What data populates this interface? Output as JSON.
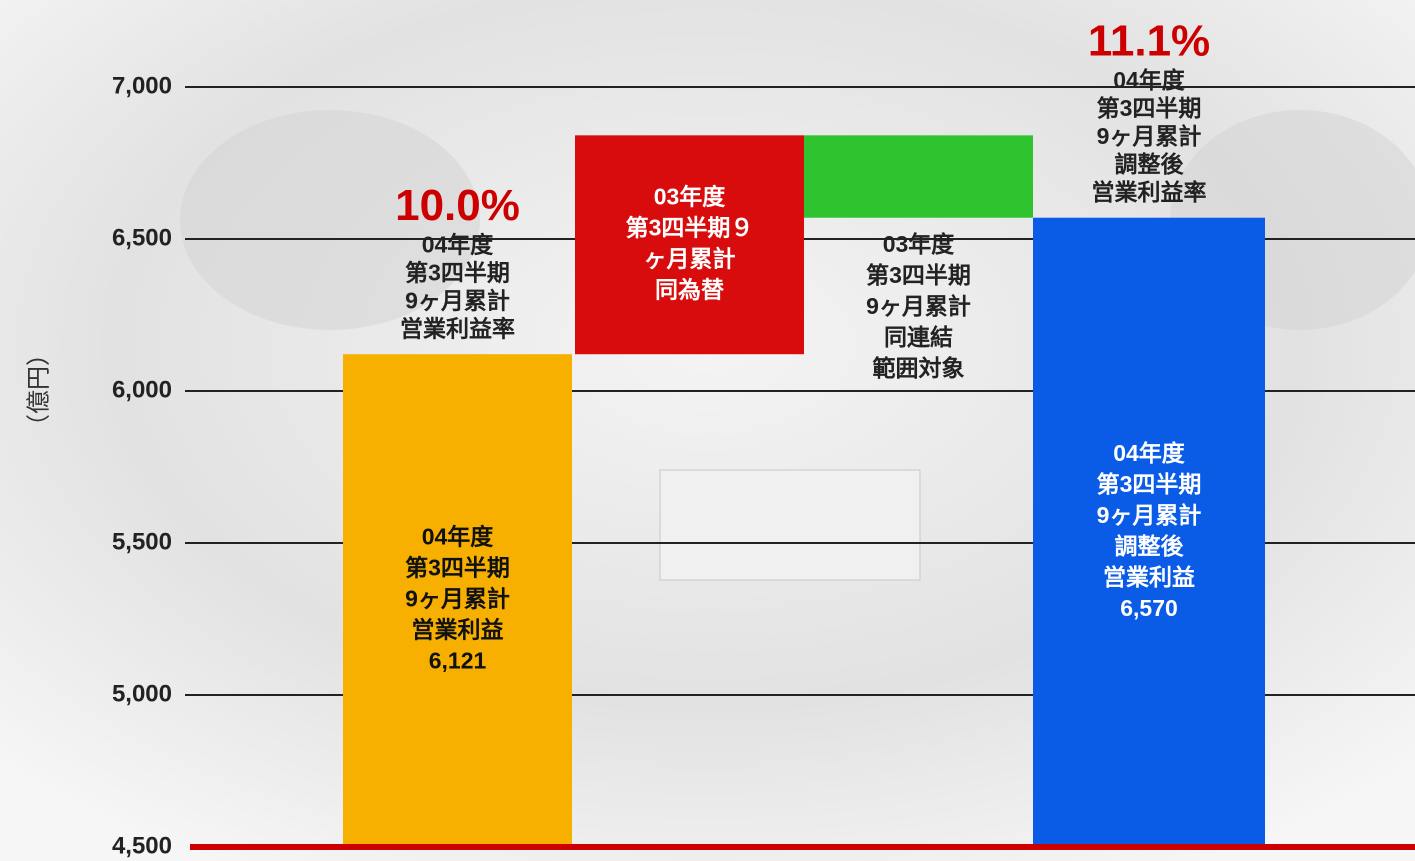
{
  "chart_data": {
    "type": "waterfall",
    "y_label": "（億円）",
    "ylim": [
      4500,
      7000
    ],
    "yticks": [
      {
        "value": 4500,
        "label": "4,500"
      },
      {
        "value": 5000,
        "label": "5,000"
      },
      {
        "value": 5500,
        "label": "5,500"
      },
      {
        "value": 6000,
        "label": "6,000"
      },
      {
        "value": 6500,
        "label": "6,500"
      },
      {
        "value": 7000,
        "label": "7,000"
      }
    ],
    "grid": true,
    "baseline_color": "#cc0000",
    "categories": [
      [
        "04年度",
        "第3四半期",
        "9ヶ月累計",
        "営業利益"
      ],
      [
        "03年度",
        "第3四半期９",
        "ヶ月累計",
        "同為替"
      ],
      [
        "03年度",
        "第3四半期",
        "9ヶ月累計",
        "同連結",
        "範囲対象"
      ],
      [
        "04年度",
        "第3四半期",
        "9ヶ月累計",
        "調整後",
        "営業利益"
      ]
    ],
    "values": [
      6121,
      720,
      -271,
      6570
    ],
    "value_labels": [
      "6,121",
      null,
      null,
      "6,570"
    ],
    "totals": [
      true,
      false,
      false,
      true
    ],
    "colors": [
      "#f7b000",
      "#d80c0c",
      "#2fc42f",
      "#0a5ce6"
    ],
    "annotations": [
      {
        "label": "10.0%",
        "lines": [
          "04年度",
          "第3四半期",
          "9ヶ月累計",
          "営業利益率"
        ]
      },
      null,
      null,
      {
        "label": "11.1%",
        "lines": [
          "04年度",
          "第3四半期",
          "9ヶ月累計",
          "調整後",
          "営業利益率"
        ]
      }
    ]
  }
}
